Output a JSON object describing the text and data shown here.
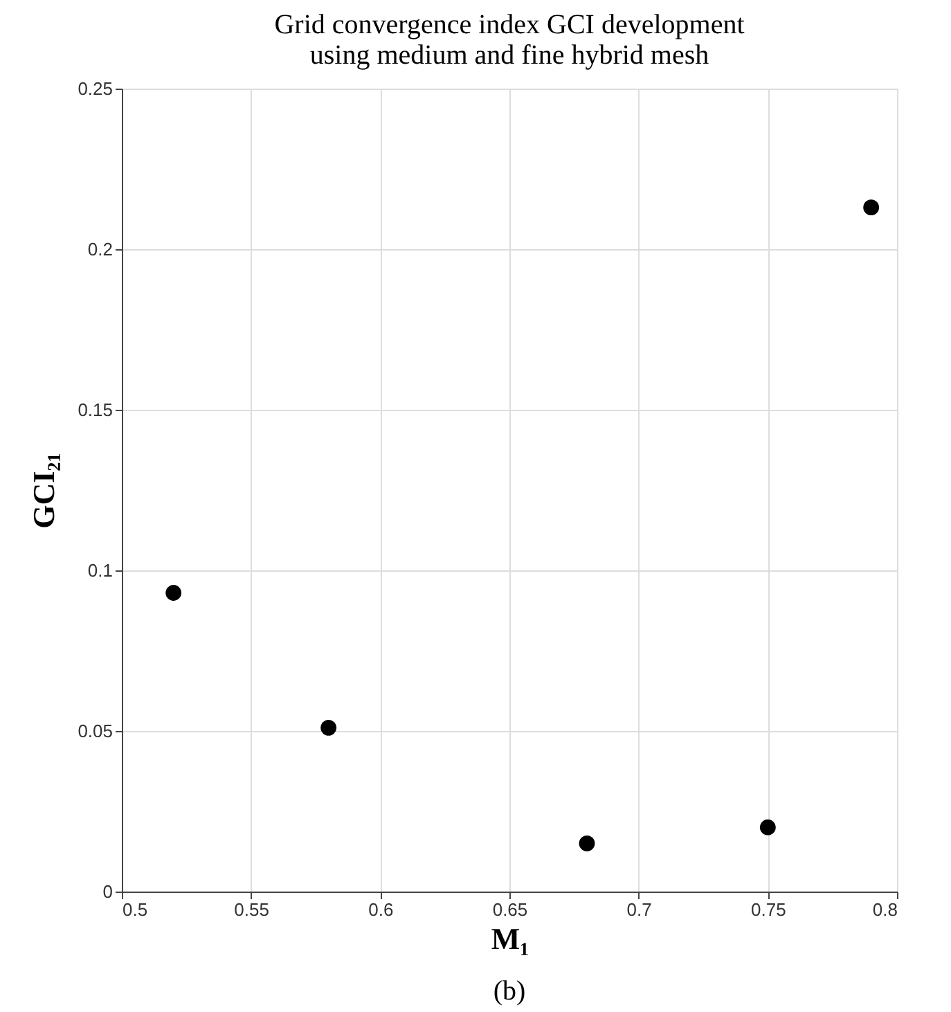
{
  "chart_data": {
    "type": "scatter",
    "title": "Grid convergence index GCI development",
    "subtitle": "using medium and fine hybrid mesh",
    "xlabel": "M₁",
    "ylabel": "GCI₂₁",
    "x": [
      0.52,
      0.58,
      0.68,
      0.75,
      0.79
    ],
    "series": [
      {
        "color": "#000000",
        "values": [
          0.093,
          0.051,
          0.015,
          0.02,
          0.213
        ]
      }
    ],
    "xlim": [
      0.5,
      0.8
    ],
    "xticks": [
      0.5,
      0.55,
      0.6,
      0.65,
      0.7,
      0.75,
      0.8
    ],
    "ylim": [
      0,
      0.25
    ],
    "yticks": [
      0,
      0.05,
      0.1,
      0.15,
      0.2,
      0.25
    ],
    "grid": true,
    "marker": "circle",
    "annotations": [
      "(b)"
    ]
  }
}
